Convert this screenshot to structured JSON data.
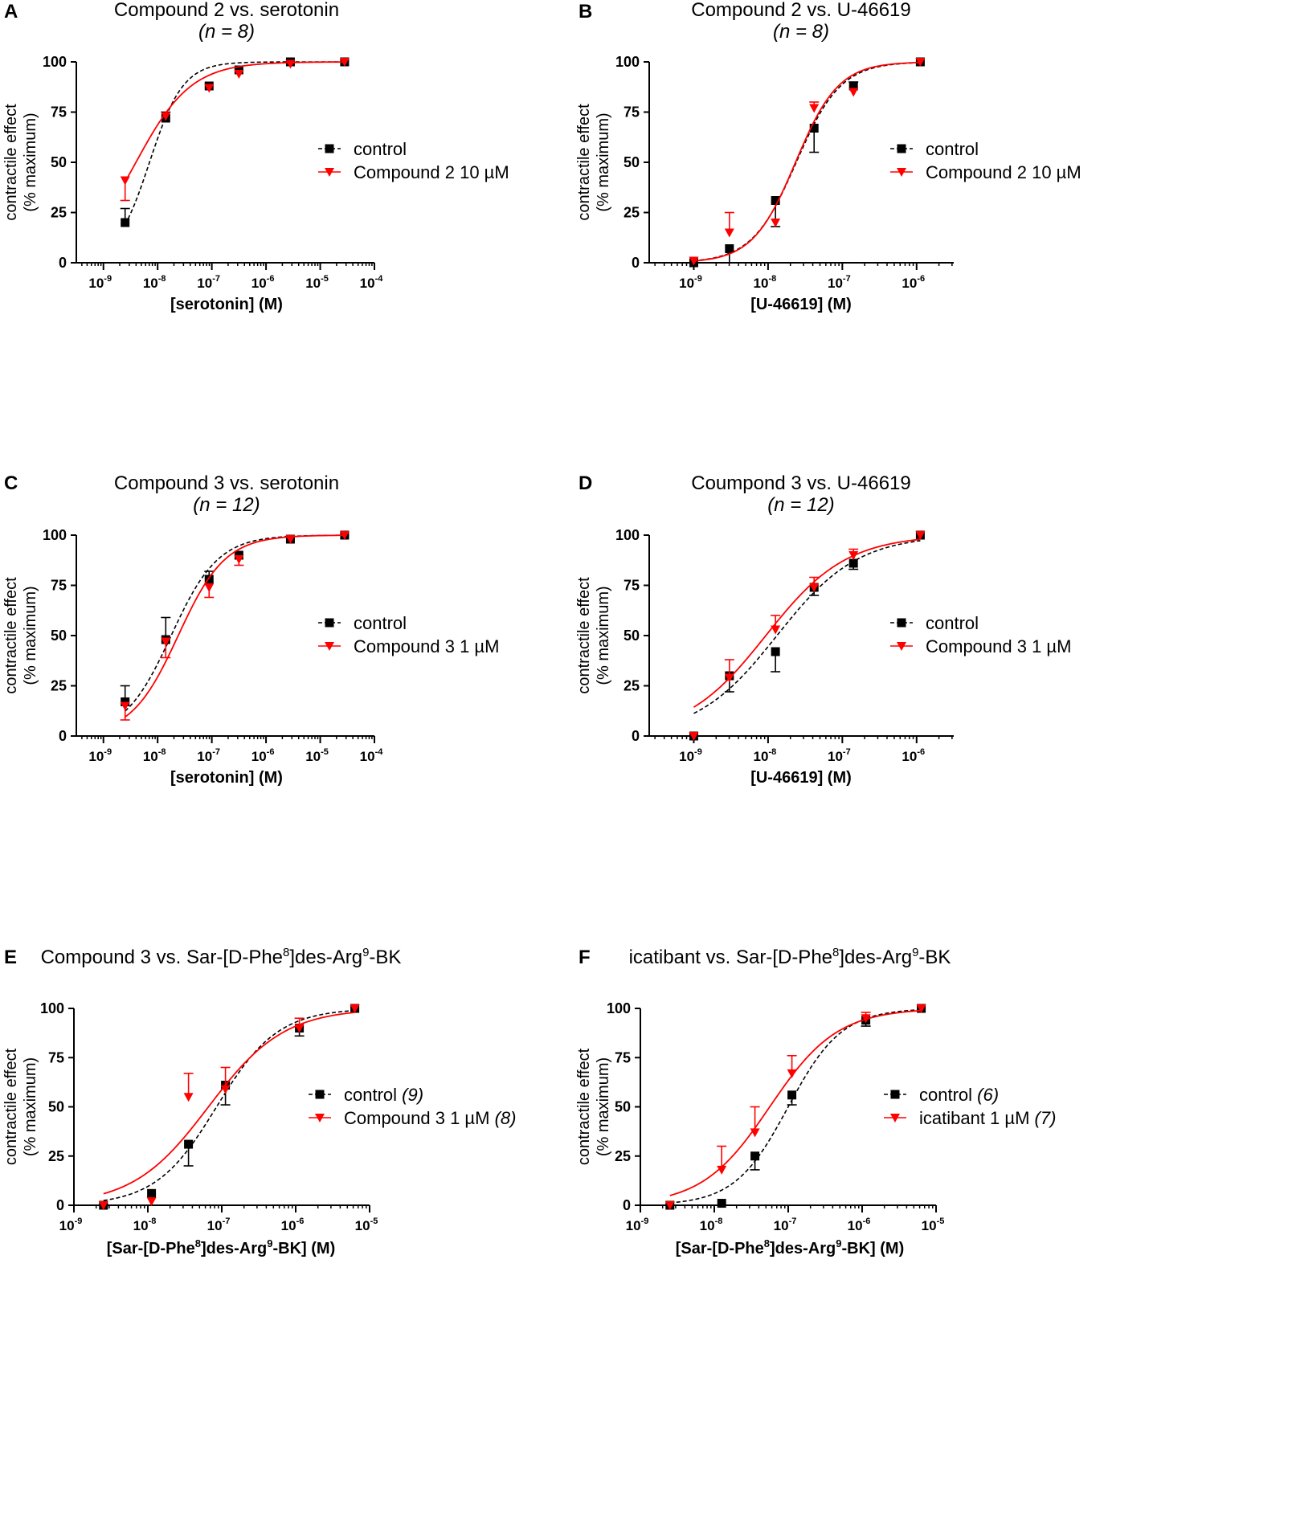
{
  "figure": {
    "ylabel_line1": "contractile effect",
    "ylabel_line2": "(% maximum)",
    "colors": {
      "control": "#000000",
      "treatment": "#ff0000"
    }
  },
  "chart_data": [
    {
      "panel": "A",
      "type": "line",
      "title": "Compound 2 vs. serotonin",
      "subtitle": "(n = 8)",
      "xlabel": "[serotonin]  (M)",
      "ylabel": "contractile effect (% maximum)",
      "x_scale": "log10",
      "xlim_log": [
        -9.5,
        -4
      ],
      "ylim": [
        0,
        100
      ],
      "xticks": [
        {
          "base": "10",
          "exp": "-9",
          "value": -9
        },
        {
          "base": "10",
          "exp": "-8",
          "value": -8
        },
        {
          "base": "10",
          "exp": "-7",
          "value": -7
        },
        {
          "base": "10",
          "exp": "-6",
          "value": -6
        },
        {
          "base": "10",
          "exp": "-5",
          "value": -5
        },
        {
          "base": "10",
          "exp": "-4",
          "value": -4
        }
      ],
      "yticks": [
        "0",
        "25",
        "50",
        "75",
        "100"
      ],
      "legend_position": "right-center",
      "series": [
        {
          "name": "control",
          "name_suffix": "",
          "color": "#000000",
          "marker": "square",
          "line": "dashed",
          "log_x": [
            -8.6,
            -7.85,
            -7.05,
            -6.5,
            -5.55,
            -4.55
          ],
          "y": [
            20,
            72,
            88,
            96,
            100,
            100
          ],
          "err": [
            {
              "idx": 0,
              "dir": "up",
              "bound": 27
            },
            {
              "idx": 1,
              "dir": "up",
              "bound": 75
            }
          ],
          "fit": {
            "bottom": 0,
            "top": 100,
            "log_ec50": -8.15,
            "hill": 1.4
          }
        },
        {
          "name": "Compound 2  10 µM",
          "name_suffix": "",
          "color": "#ff0000",
          "marker": "triangle",
          "line": "solid",
          "log_x": [
            -8.6,
            -7.85,
            -7.05,
            -6.5,
            -5.55,
            -4.55
          ],
          "y": [
            41,
            73,
            87,
            94,
            99,
            100
          ],
          "err": [
            {
              "idx": 0,
              "dir": "down",
              "bound": 31
            }
          ],
          "fit": {
            "bottom": 0,
            "top": 100,
            "log_ec50": -8.4,
            "hill": 0.85
          }
        }
      ]
    },
    {
      "panel": "B",
      "type": "line",
      "title": "Compound 2 vs. U-46619",
      "subtitle": "(n = 8)",
      "xlabel": "[U-46619]  (M)",
      "ylabel": "contractile effect (% maximum)",
      "x_scale": "log10",
      "xlim_log": [
        -9.6,
        -5.5
      ],
      "ylim": [
        0,
        100
      ],
      "xticks": [
        {
          "base": "10",
          "exp": "-9",
          "value": -9
        },
        {
          "base": "10",
          "exp": "-8",
          "value": -8
        },
        {
          "base": "10",
          "exp": "-7",
          "value": -7
        },
        {
          "base": "10",
          "exp": "-6",
          "value": -6
        }
      ],
      "yticks": [
        "0",
        "25",
        "50",
        "75",
        "100"
      ],
      "legend_position": "right-center",
      "series": [
        {
          "name": "control",
          "name_suffix": "",
          "color": "#000000",
          "marker": "square",
          "line": "dashed",
          "log_x": [
            -9.0,
            -8.52,
            -7.9,
            -7.38,
            -6.85,
            -5.95
          ],
          "y": [
            0,
            7,
            31,
            67,
            88,
            100
          ],
          "err": [
            {
              "idx": 1,
              "dir": "down",
              "bound": 0
            },
            {
              "idx": 2,
              "dir": "down",
              "bound": 18
            },
            {
              "idx": 3,
              "dir": "down",
              "bound": 55
            },
            {
              "idx": 4,
              "dir": "up",
              "bound": 90
            }
          ],
          "fit": {
            "bottom": 0,
            "top": 100,
            "log_ec50": -7.62,
            "hill": 1.45
          }
        },
        {
          "name": "Compound 2  10 µM",
          "name_suffix": "",
          "color": "#ff0000",
          "marker": "triangle",
          "line": "solid",
          "log_x": [
            -9.0,
            -8.52,
            -7.9,
            -7.38,
            -6.85,
            -5.95
          ],
          "y": [
            1,
            15,
            20,
            77,
            85,
            100
          ],
          "err": [
            {
              "idx": 1,
              "dir": "up",
              "bound": 25
            },
            {
              "idx": 3,
              "dir": "up",
              "bound": 80
            }
          ],
          "fit": {
            "bottom": 0,
            "top": 100,
            "log_ec50": -7.63,
            "hill": 1.5
          }
        }
      ]
    },
    {
      "panel": "C",
      "type": "line",
      "title": "Compound 3 vs. serotonin",
      "subtitle": "(n = 12)",
      "xlabel": "[serotonin]  (M)",
      "ylabel": "contractile effect (% maximum)",
      "x_scale": "log10",
      "xlim_log": [
        -9.5,
        -4
      ],
      "ylim": [
        0,
        100
      ],
      "xticks": [
        {
          "base": "10",
          "exp": "-9",
          "value": -9
        },
        {
          "base": "10",
          "exp": "-8",
          "value": -8
        },
        {
          "base": "10",
          "exp": "-7",
          "value": -7
        },
        {
          "base": "10",
          "exp": "-6",
          "value": -6
        },
        {
          "base": "10",
          "exp": "-5",
          "value": -5
        },
        {
          "base": "10",
          "exp": "-4",
          "value": -4
        }
      ],
      "yticks": [
        "0",
        "25",
        "50",
        "75",
        "100"
      ],
      "legend_position": "right-center",
      "series": [
        {
          "name": "control",
          "name_suffix": "",
          "color": "#000000",
          "marker": "square",
          "line": "dashed",
          "log_x": [
            -8.6,
            -7.85,
            -7.05,
            -6.5,
            -5.55,
            -4.55
          ],
          "y": [
            17,
            48,
            78,
            90,
            98,
            100
          ],
          "err": [
            {
              "idx": 0,
              "dir": "up",
              "bound": 25
            },
            {
              "idx": 1,
              "dir": "up",
              "bound": 59
            },
            {
              "idx": 2,
              "dir": "up",
              "bound": 82
            }
          ],
          "fit": {
            "bottom": 0,
            "top": 100,
            "log_ec50": -7.75,
            "hill": 1.0
          }
        },
        {
          "name": "Compound 3  1 µM",
          "name_suffix": "",
          "color": "#ff0000",
          "marker": "triangle",
          "line": "solid",
          "log_x": [
            -8.6,
            -7.85,
            -7.05,
            -6.5,
            -5.55,
            -4.55
          ],
          "y": [
            15,
            47,
            74,
            88,
            98,
            100
          ],
          "err": [
            {
              "idx": 0,
              "dir": "down",
              "bound": 8
            },
            {
              "idx": 1,
              "dir": "down",
              "bound": 39
            },
            {
              "idx": 2,
              "dir": "down",
              "bound": 69
            },
            {
              "idx": 3,
              "dir": "down",
              "bound": 85
            }
          ],
          "fit": {
            "bottom": 0,
            "top": 100,
            "log_ec50": -7.62,
            "hill": 1.0
          }
        }
      ]
    },
    {
      "panel": "D",
      "type": "line",
      "title": "Coumpond 3 vs. U-46619",
      "subtitle": "(n = 12)",
      "xlabel": "[U-46619]  (M)",
      "ylabel": "contractile effect (% maximum)",
      "x_scale": "log10",
      "xlim_log": [
        -9.6,
        -5.5
      ],
      "ylim": [
        0,
        100
      ],
      "xticks": [
        {
          "base": "10",
          "exp": "-9",
          "value": -9
        },
        {
          "base": "10",
          "exp": "-8",
          "value": -8
        },
        {
          "base": "10",
          "exp": "-7",
          "value": -7
        },
        {
          "base": "10",
          "exp": "-6",
          "value": -6
        }
      ],
      "yticks": [
        "0",
        "25",
        "50",
        "75",
        "100"
      ],
      "legend_position": "right-center",
      "series": [
        {
          "name": "control",
          "name_suffix": "",
          "color": "#000000",
          "marker": "square",
          "line": "dashed",
          "log_x": [
            -9.0,
            -8.52,
            -7.9,
            -7.38,
            -6.85,
            -5.95
          ],
          "y": [
            0,
            30,
            42,
            74,
            86,
            100
          ],
          "err": [
            {
              "idx": 1,
              "dir": "down",
              "bound": 22
            },
            {
              "idx": 2,
              "dir": "down",
              "bound": 32
            },
            {
              "idx": 3,
              "dir": "down",
              "bound": 70
            },
            {
              "idx": 4,
              "dir": "down",
              "bound": 83
            }
          ],
          "fit": {
            "bottom": 0,
            "top": 100,
            "log_ec50": -7.88,
            "hill": 0.8
          }
        },
        {
          "name": "Compound 3  1 µM",
          "name_suffix": "",
          "color": "#ff0000",
          "marker": "triangle",
          "line": "solid",
          "log_x": [
            -9.0,
            -8.52,
            -7.9,
            -7.38,
            -6.85,
            -5.95
          ],
          "y": [
            0,
            29,
            53,
            74,
            90,
            100
          ],
          "err": [
            {
              "idx": 1,
              "dir": "up",
              "bound": 38
            },
            {
              "idx": 2,
              "dir": "up",
              "bound": 60
            },
            {
              "idx": 3,
              "dir": "up",
              "bound": 79
            },
            {
              "idx": 4,
              "dir": "up",
              "bound": 93
            }
          ],
          "fit": {
            "bottom": 0,
            "top": 100,
            "log_ec50": -8.03,
            "hill": 0.8
          }
        }
      ]
    },
    {
      "panel": "E",
      "type": "line",
      "title_parts": [
        "Compound 3 vs. Sar-[D-Phe",
        "8",
        "]des-Arg",
        "9",
        "-BK"
      ],
      "subtitle": "",
      "xlabel_parts": [
        "[Sar-[D-Phe",
        "8",
        "]des-Arg",
        "9",
        "-BK]  (M)"
      ],
      "ylabel": "contractile effect (% maximum)",
      "x_scale": "log10",
      "xlim_log": [
        -9,
        -5
      ],
      "ylim": [
        0,
        100
      ],
      "xticks": [
        {
          "base": "10",
          "exp": "-9",
          "value": -9
        },
        {
          "base": "10",
          "exp": "-8",
          "value": -8
        },
        {
          "base": "10",
          "exp": "-7",
          "value": -7
        },
        {
          "base": "10",
          "exp": "-6",
          "value": -6
        },
        {
          "base": "10",
          "exp": "-5",
          "value": -5
        }
      ],
      "yticks": [
        "0",
        "25",
        "50",
        "75",
        "100"
      ],
      "legend_position": "right-center",
      "series": [
        {
          "name": "control ",
          "name_suffix": "(9)",
          "color": "#000000",
          "marker": "square",
          "line": "dashed",
          "log_x": [
            -8.6,
            -7.95,
            -7.45,
            -6.95,
            -5.95,
            -5.2
          ],
          "y": [
            0,
            6,
            31,
            61,
            90,
            100
          ],
          "err": [
            {
              "idx": 2,
              "dir": "down",
              "bound": 20
            },
            {
              "idx": 3,
              "dir": "down",
              "bound": 51
            },
            {
              "idx": 4,
              "dir": "down",
              "bound": 86
            }
          ],
          "fit": {
            "bottom": 0,
            "top": 100,
            "log_ec50": -7.07,
            "hill": 1.05
          }
        },
        {
          "name": "Compound 3  1 µM ",
          "name_suffix": "(8)",
          "color": "#ff0000",
          "marker": "triangle",
          "line": "solid",
          "log_x": [
            -8.6,
            -7.95,
            -7.45,
            -6.95,
            -5.95,
            -5.2
          ],
          "y": [
            0,
            2,
            55,
            59,
            90,
            100
          ],
          "err": [
            {
              "idx": 2,
              "dir": "up",
              "bound": 67
            },
            {
              "idx": 3,
              "dir": "up",
              "bound": 70
            },
            {
              "idx": 4,
              "dir": "up",
              "bound": 95
            }
          ],
          "fit": {
            "bottom": 0,
            "top": 100,
            "log_ec50": -7.18,
            "hill": 0.85
          }
        }
      ]
    },
    {
      "panel": "F",
      "type": "line",
      "title_parts": [
        "icatibant vs. Sar-[D-Phe",
        "8",
        "]des-Arg",
        "9",
        "-BK"
      ],
      "subtitle": "",
      "xlabel_parts": [
        "[Sar-[D-Phe",
        "8",
        "]des-Arg",
        "9",
        "-BK]  (M)"
      ],
      "ylabel": "contractile effect (% maximum)",
      "x_scale": "log10",
      "xlim_log": [
        -9,
        -5
      ],
      "ylim": [
        0,
        100
      ],
      "xticks": [
        {
          "base": "10",
          "exp": "-9",
          "value": -9
        },
        {
          "base": "10",
          "exp": "-8",
          "value": -8
        },
        {
          "base": "10",
          "exp": "-7",
          "value": -7
        },
        {
          "base": "10",
          "exp": "-6",
          "value": -6
        },
        {
          "base": "10",
          "exp": "-5",
          "value": -5
        }
      ],
      "yticks": [
        "0",
        "25",
        "50",
        "75",
        "100"
      ],
      "legend_position": "right-center",
      "series": [
        {
          "name": "control ",
          "name_suffix": "(6)",
          "color": "#000000",
          "marker": "square",
          "line": "dashed",
          "log_x": [
            -8.6,
            -7.9,
            -7.45,
            -6.95,
            -5.95,
            -5.2
          ],
          "y": [
            0,
            1,
            25,
            56,
            94,
            100
          ],
          "err": [
            {
              "idx": 2,
              "dir": "down",
              "bound": 18
            },
            {
              "idx": 3,
              "dir": "down",
              "bound": 51
            },
            {
              "idx": 4,
              "dir": "down",
              "bound": 91
            }
          ],
          "fit": {
            "bottom": 0,
            "top": 100,
            "log_ec50": -7.0,
            "hill": 1.2
          }
        },
        {
          "name": "icatibant  1 µM ",
          "name_suffix": "(7)",
          "color": "#ff0000",
          "marker": "triangle",
          "line": "solid",
          "log_x": [
            -8.6,
            -7.9,
            -7.45,
            -6.95,
            -5.95,
            -5.2
          ],
          "y": [
            0,
            18,
            37,
            67,
            95,
            100
          ],
          "err": [
            {
              "idx": 1,
              "dir": "up",
              "bound": 30
            },
            {
              "idx": 2,
              "dir": "up",
              "bound": 50
            },
            {
              "idx": 3,
              "dir": "up",
              "bound": 76
            },
            {
              "idx": 4,
              "dir": "up",
              "bound": 98
            }
          ],
          "fit": {
            "bottom": 0,
            "top": 100,
            "log_ec50": -7.25,
            "hill": 0.95
          }
        }
      ]
    }
  ]
}
